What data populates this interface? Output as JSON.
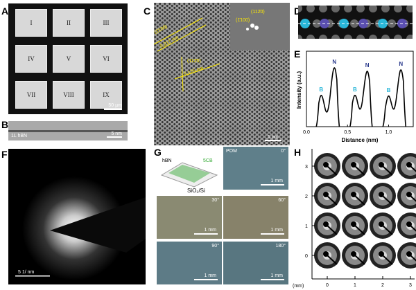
{
  "panels": {
    "A": "A",
    "B": "B",
    "C": "C",
    "D": "D",
    "E": "E",
    "F": "F",
    "G": "G",
    "H": "H"
  },
  "a": {
    "squares": [
      "I",
      "II",
      "III",
      "IV",
      "V",
      "VI",
      "VII",
      "VIII",
      "IX"
    ],
    "scale": "50 µm"
  },
  "b": {
    "label": "1L hBN",
    "scale": "5 nm"
  },
  "c": {
    "plane1": "(1̄100)",
    "d1": "0.217 nm",
    "plane2": "(112̄0)",
    "d2": "0.125 nm",
    "fft1": "(1̄100)",
    "fft2": "(112̄0)",
    "scale": "1 nm"
  },
  "f": {
    "scale": "5 1/ nm"
  },
  "g": {
    "hbn": "hBN",
    "lc": "5CB",
    "substrate": "SiO₂/Si",
    "pom": "POM",
    "angles": [
      "0°",
      "30°",
      "60°",
      "90°",
      "180°"
    ],
    "scale": "1 mm"
  },
  "h": {
    "yticks": [
      "0",
      "1",
      "2",
      "3"
    ],
    "xticks": [
      "0",
      "1",
      "2",
      "3"
    ],
    "unit": "(mm)"
  },
  "chart_data": {
    "type": "line",
    "xlabel": "Distance (nm)",
    "ylabel": "Intensity (a.u.)",
    "xlim": [
      0,
      1.3
    ],
    "xticks": [
      "0.0",
      "0.5",
      "1.0"
    ],
    "peaks": [
      {
        "label": "B",
        "x": 0.18,
        "y": 0.45
      },
      {
        "label": "N",
        "x": 0.34,
        "y": 0.85
      },
      {
        "label": "B",
        "x": 0.59,
        "y": 0.45
      },
      {
        "label": "N",
        "x": 0.74,
        "y": 0.8
      },
      {
        "label": "B",
        "x": 1.0,
        "y": 0.44
      },
      {
        "label": "N",
        "x": 1.15,
        "y": 0.82
      }
    ],
    "colors": {
      "B": "#29b6d8",
      "N": "#2a3a8c"
    }
  }
}
